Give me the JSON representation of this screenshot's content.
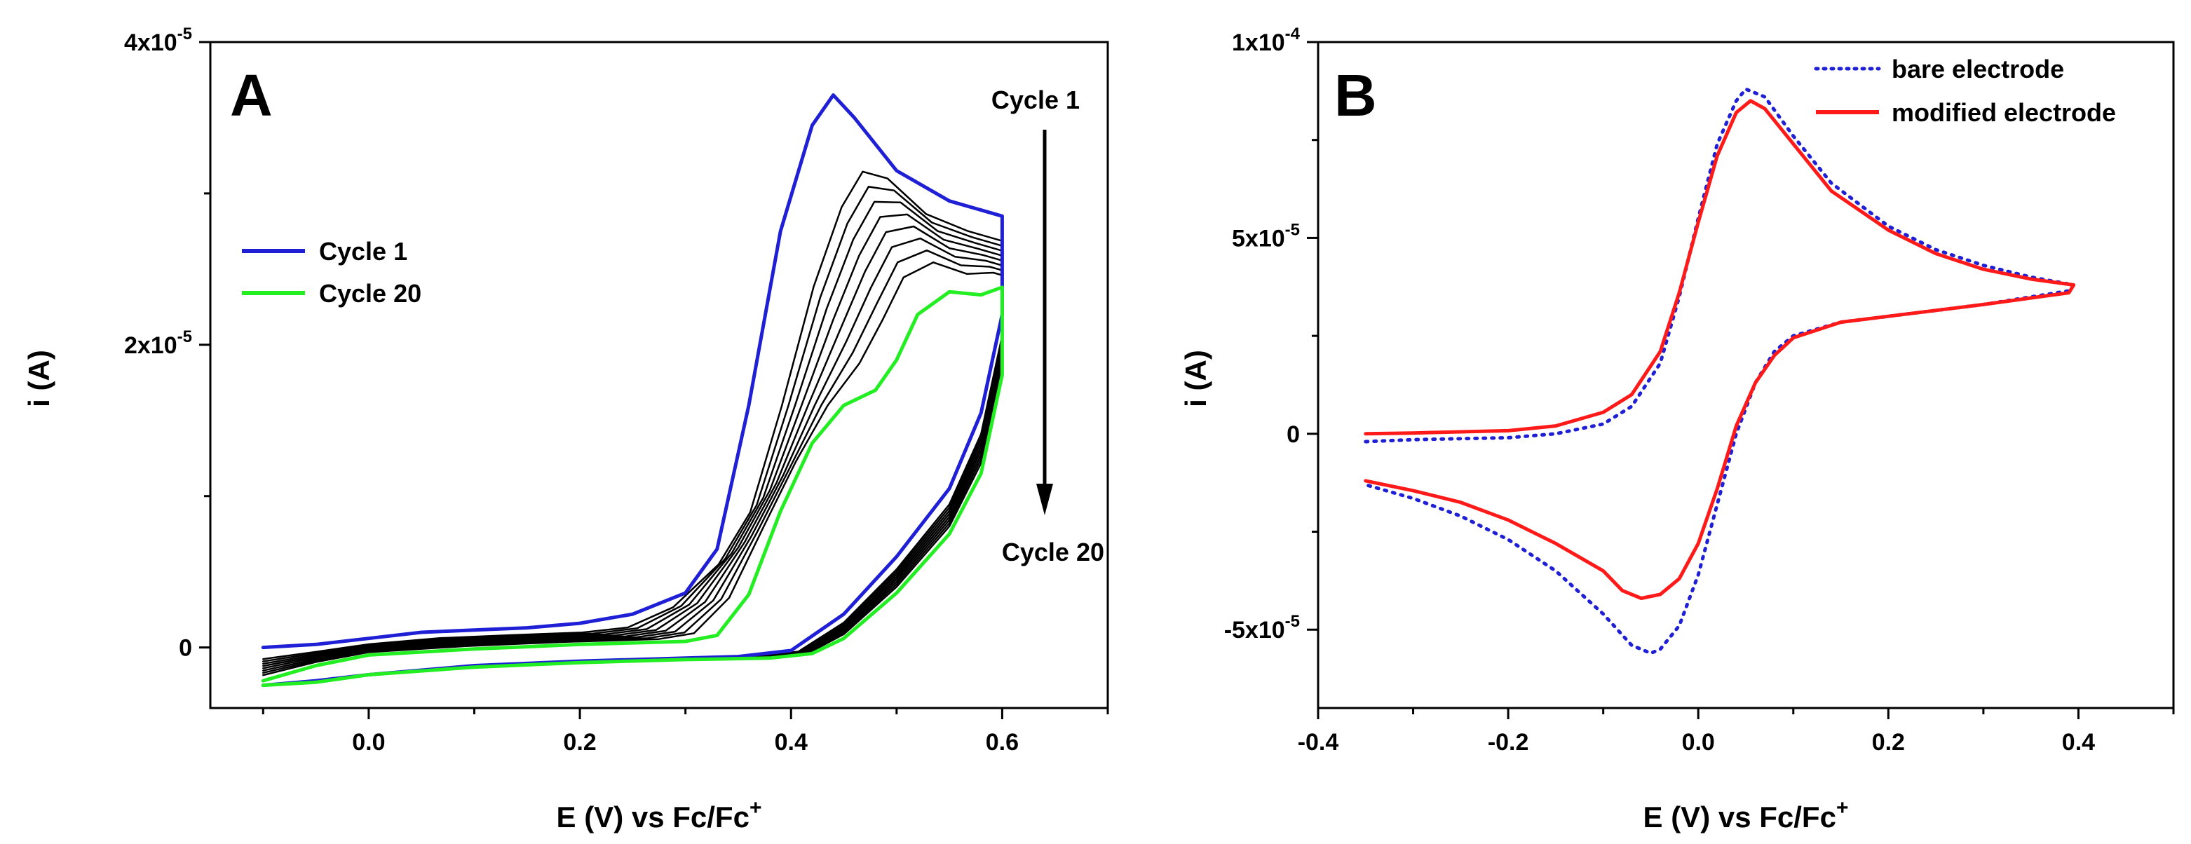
{
  "chart_data": [
    {
      "panel": "A",
      "type": "line",
      "xlabel": "E (V) vs Fc/Fc",
      "xlabel_sup": "+",
      "ylabel": "i (A)",
      "xlim": [
        -0.15,
        0.7
      ],
      "ylim": [
        -4e-06,
        4e-05
      ],
      "x_ticks": [
        0.0,
        0.2,
        0.4,
        0.6
      ],
      "x_tick_labels": [
        "0.0",
        "0.2",
        "0.4",
        "0.6"
      ],
      "y_ticks": [
        0,
        2e-05,
        4e-05
      ],
      "y_tick_labels": [
        {
          "mantissa": "0",
          "exp": ""
        },
        {
          "mantissa": "2x10",
          "exp": "-5"
        },
        {
          "mantissa": "4x10",
          "exp": "-5"
        }
      ],
      "legend": [
        "Cycle 1",
        "Cycle 20"
      ],
      "legend_position": "center-left",
      "annotations": {
        "top": "Cycle 1",
        "bottom": "Cycle 20",
        "arrow": "down"
      },
      "series": [
        {
          "name": "Cycle 1",
          "color": "#1f1fd6",
          "forward": [
            [
              -0.1,
              0.0
            ],
            [
              -0.05,
              2e-07
            ],
            [
              0.0,
              6e-07
            ],
            [
              0.05,
              1e-06
            ],
            [
              0.1,
              1.15e-06
            ],
            [
              0.15,
              1.3e-06
            ],
            [
              0.2,
              1.6e-06
            ],
            [
              0.25,
              2.2e-06
            ],
            [
              0.3,
              3.6e-06
            ],
            [
              0.33,
              6.5e-06
            ],
            [
              0.36,
              1.6e-05
            ],
            [
              0.39,
              2.75e-05
            ],
            [
              0.42,
              3.45e-05
            ],
            [
              0.44,
              3.65e-05
            ],
            [
              0.46,
              3.5e-05
            ],
            [
              0.5,
              3.15e-05
            ],
            [
              0.55,
              2.95e-05
            ],
            [
              0.6,
              2.85e-05
            ]
          ],
          "reverse": [
            [
              0.6,
              2.85e-05
            ],
            [
              0.6,
              2.2e-05
            ],
            [
              0.58,
              1.55e-05
            ],
            [
              0.55,
              1.05e-05
            ],
            [
              0.5,
              6e-06
            ],
            [
              0.45,
              2.2e-06
            ],
            [
              0.4,
              -2e-07
            ],
            [
              0.35,
              -6e-07
            ],
            [
              0.3,
              -7e-07
            ],
            [
              0.2,
              -9e-07
            ],
            [
              0.1,
              -1.2e-06
            ],
            [
              0.0,
              -1.8e-06
            ],
            [
              -0.05,
              -2.2e-06
            ],
            [
              -0.1,
              -2.5e-06
            ]
          ]
        },
        {
          "name": "Cycle 20",
          "color": "#22ee22",
          "forward": [
            [
              -0.1,
              -2.2e-06
            ],
            [
              -0.05,
              -1.2e-06
            ],
            [
              0.0,
              -5e-07
            ],
            [
              0.1,
              -1e-07
            ],
            [
              0.2,
              2e-07
            ],
            [
              0.3,
              4e-07
            ],
            [
              0.33,
              8e-07
            ],
            [
              0.36,
              3.5e-06
            ],
            [
              0.39,
              9e-06
            ],
            [
              0.42,
              1.35e-05
            ],
            [
              0.45,
              1.6e-05
            ],
            [
              0.48,
              1.7e-05
            ],
            [
              0.5,
              1.9e-05
            ],
            [
              0.52,
              2.2e-05
            ],
            [
              0.55,
              2.35e-05
            ],
            [
              0.58,
              2.33e-05
            ],
            [
              0.6,
              2.38e-05
            ]
          ],
          "reverse": [
            [
              0.6,
              2.38e-05
            ],
            [
              0.6,
              1.8e-05
            ],
            [
              0.58,
              1.15e-05
            ],
            [
              0.55,
              7.5e-06
            ],
            [
              0.5,
              3.6e-06
            ],
            [
              0.45,
              6e-07
            ],
            [
              0.42,
              -4e-07
            ],
            [
              0.38,
              -7e-07
            ],
            [
              0.3,
              -8e-07
            ],
            [
              0.2,
              -1e-06
            ],
            [
              0.1,
              -1.3e-06
            ],
            [
              0.0,
              -1.8e-06
            ],
            [
              -0.05,
              -2.3e-06
            ],
            [
              -0.1,
              -2.5e-06
            ]
          ]
        }
      ],
      "intermediate_color": "#000000",
      "intermediate_count": 8
    },
    {
      "panel": "B",
      "type": "line",
      "xlabel": "E (V) vs Fc/Fc",
      "xlabel_sup": "+",
      "ylabel": "i (A)",
      "xlim": [
        -0.4,
        0.5
      ],
      "ylim": [
        -7e-05,
        0.0001
      ],
      "x_ticks": [
        -0.4,
        -0.2,
        0.0,
        0.2,
        0.4
      ],
      "x_tick_labels": [
        "-0.4",
        "-0.2",
        "0.0",
        "0.2",
        "0.4"
      ],
      "y_ticks": [
        -5e-05,
        0,
        5e-05,
        0.0001
      ],
      "y_tick_labels": [
        {
          "mantissa": "-5x10",
          "exp": "-5"
        },
        {
          "mantissa": "0",
          "exp": ""
        },
        {
          "mantissa": "5x10",
          "exp": "-5"
        },
        {
          "mantissa": "1x10",
          "exp": "-4"
        }
      ],
      "legend": [
        "bare electrode",
        "modified electrode"
      ],
      "legend_position": "top-right",
      "series": [
        {
          "name": "bare electrode",
          "color": "#1f1fd6",
          "style": "dotted",
          "points": [
            [
              -0.35,
              -2e-06
            ],
            [
              -0.3,
              -1.5e-06
            ],
            [
              -0.2,
              -1e-06
            ],
            [
              -0.15,
              0
            ],
            [
              -0.1,
              2.5e-06
            ],
            [
              -0.07,
              7e-06
            ],
            [
              -0.04,
              1.8e-05
            ],
            [
              -0.02,
              3.5e-05
            ],
            [
              0.0,
              5.5e-05
            ],
            [
              0.02,
              7.4e-05
            ],
            [
              0.04,
              8.5e-05
            ],
            [
              0.05,
              8.8e-05
            ],
            [
              0.07,
              8.6e-05
            ],
            [
              0.1,
              7.6e-05
            ],
            [
              0.14,
              6.4e-05
            ],
            [
              0.2,
              5.3e-05
            ],
            [
              0.25,
              4.7e-05
            ],
            [
              0.3,
              4.3e-05
            ],
            [
              0.35,
              4e-05
            ],
            [
              0.395,
              3.8e-05
            ],
            [
              0.39,
              3.65e-05
            ],
            [
              0.3,
              3.3e-05
            ],
            [
              0.2,
              3e-05
            ],
            [
              0.15,
              2.85e-05
            ],
            [
              0.1,
              2.5e-05
            ],
            [
              0.08,
              2.1e-05
            ],
            [
              0.06,
              1.3e-05
            ],
            [
              0.04,
              0
            ],
            [
              0.02,
              -1.8e-05
            ],
            [
              0.0,
              -3.6e-05
            ],
            [
              -0.02,
              -4.9e-05
            ],
            [
              -0.04,
              -5.5e-05
            ],
            [
              -0.05,
              -5.6e-05
            ],
            [
              -0.07,
              -5.4e-05
            ],
            [
              -0.1,
              -4.6e-05
            ],
            [
              -0.15,
              -3.5e-05
            ],
            [
              -0.2,
              -2.7e-05
            ],
            [
              -0.25,
              -2.1e-05
            ],
            [
              -0.3,
              -1.65e-05
            ],
            [
              -0.35,
              -1.3e-05
            ]
          ]
        },
        {
          "name": "modified electrode",
          "color": "#ff1a1a",
          "style": "solid",
          "points": [
            [
              -0.35,
              0
            ],
            [
              -0.3,
              2e-07
            ],
            [
              -0.2,
              8e-07
            ],
            [
              -0.15,
              2e-06
            ],
            [
              -0.1,
              5.5e-06
            ],
            [
              -0.07,
              1e-05
            ],
            [
              -0.04,
              2.1e-05
            ],
            [
              -0.02,
              3.6e-05
            ],
            [
              0.0,
              5.4e-05
            ],
            [
              0.02,
              7.1e-05
            ],
            [
              0.04,
              8.2e-05
            ],
            [
              0.055,
              8.5e-05
            ],
            [
              0.07,
              8.3e-05
            ],
            [
              0.1,
              7.4e-05
            ],
            [
              0.14,
              6.2e-05
            ],
            [
              0.2,
              5.2e-05
            ],
            [
              0.25,
              4.6e-05
            ],
            [
              0.3,
              4.2e-05
            ],
            [
              0.35,
              3.95e-05
            ],
            [
              0.395,
              3.8e-05
            ],
            [
              0.39,
              3.6e-05
            ],
            [
              0.3,
              3.3e-05
            ],
            [
              0.2,
              3e-05
            ],
            [
              0.15,
              2.85e-05
            ],
            [
              0.1,
              2.45e-05
            ],
            [
              0.08,
              2e-05
            ],
            [
              0.06,
              1.3e-05
            ],
            [
              0.04,
              2e-06
            ],
            [
              0.02,
              -1.4e-05
            ],
            [
              0.0,
              -2.8e-05
            ],
            [
              -0.02,
              -3.7e-05
            ],
            [
              -0.04,
              -4.1e-05
            ],
            [
              -0.06,
              -4.2e-05
            ],
            [
              -0.08,
              -4e-05
            ],
            [
              -0.1,
              -3.5e-05
            ],
            [
              -0.15,
              -2.8e-05
            ],
            [
              -0.2,
              -2.2e-05
            ],
            [
              -0.25,
              -1.75e-05
            ],
            [
              -0.3,
              -1.45e-05
            ],
            [
              -0.35,
              -1.2e-05
            ]
          ]
        }
      ]
    }
  ]
}
